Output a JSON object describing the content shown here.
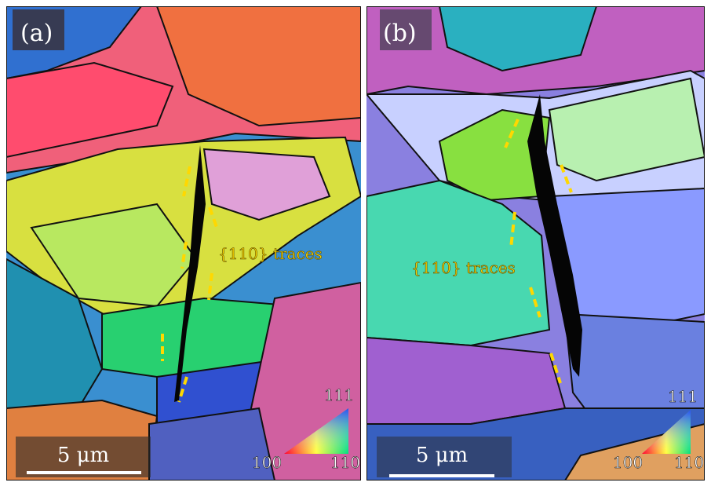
{
  "panels": [
    {
      "label": "(a)",
      "scale_bar": "5 μm",
      "annotation": "{110} traces",
      "legend": {
        "top": "111",
        "left": "100",
        "right": "110"
      }
    },
    {
      "label": "(b)",
      "scale_bar": "5 μm",
      "annotation": "{110} traces",
      "legend": {
        "top": "111",
        "left": "100",
        "right": "110"
      }
    }
  ]
}
